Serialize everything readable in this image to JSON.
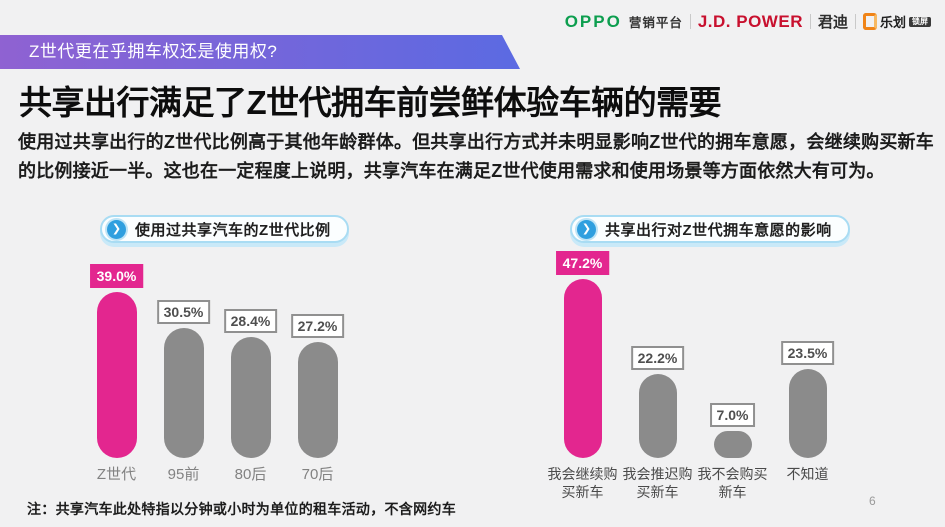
{
  "slide": {
    "banner_tag": "Z世代更在乎拥车权还是使用权?",
    "headline": "共享出行满足了Z世代拥车前尝鲜体验车辆的需要",
    "intro": "使用过共享出行的Z世代比例高于其他年龄群体。但共享出行方式并未明显影响Z世代的拥车意愿，会继续购买新车的比例接近一半。这也在一定程度上说明，共享汽车在满足Z世代使用需求和使用场景等方面依然大有可为。",
    "note": "注：共享汽车此处特指以分钟或小时为单位的租车活动，不含网约车",
    "page_number": "6"
  },
  "logos": {
    "oppo": "OPPO",
    "marketing_platform": "营销平台",
    "jdpower": "J.D. POWER",
    "jundi": "君迪",
    "lehua": "乐划",
    "lehua_badge": "锁屏",
    "chevron": "❯"
  },
  "colors": {
    "background": "#F1F1F2",
    "accent_magenta": "#E3268F",
    "bar_gray": "#8B8B8B",
    "banner_gradient_left": "#8F62D2",
    "banner_gradient_right": "#5B6AE2",
    "oppo_green": "#0D9E4F",
    "jdpower_red": "#C8102E",
    "lehua_orange": "#F08418",
    "pill_border_blue": "#A9DCF3",
    "chevron_circle_blue": "#2F9FDF"
  },
  "chart_data": [
    {
      "type": "bar",
      "title": "使用过共享汽车的Z世代比例",
      "categories": [
        "Z世代",
        "95前",
        "80后",
        "70后"
      ],
      "values": [
        39.0,
        30.5,
        28.4,
        27.2
      ],
      "value_labels": [
        "39.0%",
        "30.5%",
        "28.4%",
        "27.2%"
      ],
      "unit": "%",
      "highlight_index": 0,
      "highlight_color": "#E3268F",
      "bar_color": "#8B8B8B",
      "ylim": [
        0,
        48
      ],
      "grid": false,
      "legend": false,
      "xlabel": "",
      "ylabel": ""
    },
    {
      "type": "bar",
      "title": "共享出行对Z世代拥车意愿的影响",
      "categories": [
        "我会继续购\n买新车",
        "我会推迟购\n买新车",
        "我不会购买\n新车",
        "不知道"
      ],
      "values": [
        47.2,
        22.2,
        7.0,
        23.5
      ],
      "value_labels": [
        "47.2%",
        "22.2%",
        "7.0%",
        "23.5%"
      ],
      "unit": "%",
      "highlight_index": 0,
      "highlight_color": "#E3268F",
      "bar_color": "#8B8B8B",
      "ylim": [
        0,
        53
      ],
      "grid": false,
      "legend": false,
      "xlabel": "",
      "ylabel": ""
    }
  ]
}
